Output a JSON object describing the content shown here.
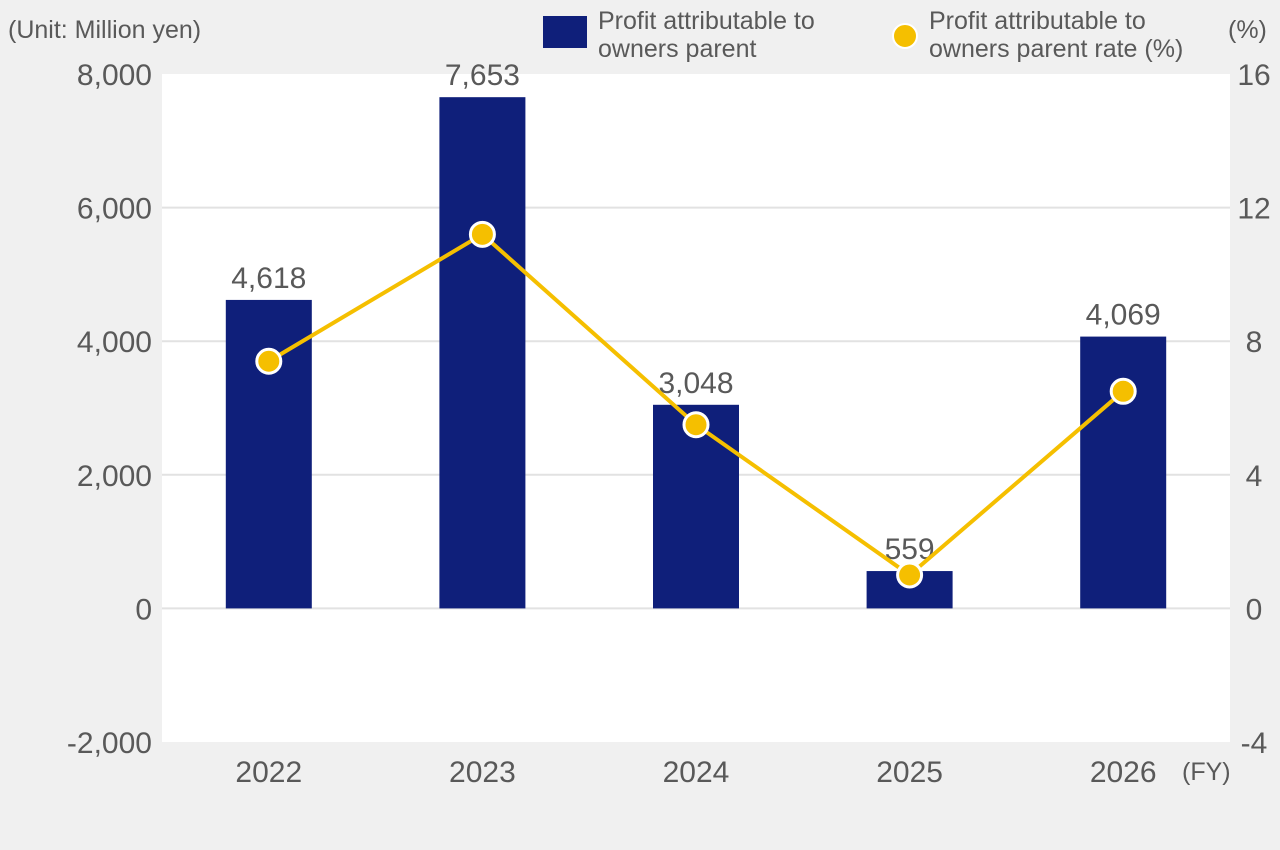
{
  "colors": {
    "bar": "#0f1f7a",
    "line": "#f5bf00",
    "grid": "#e2e2e2",
    "plot_bg": "#ffffff",
    "page_bg": "#f0f0f0"
  },
  "chart_data": {
    "type": "bar",
    "categories": [
      "2022",
      "2023",
      "2024",
      "2025",
      "2026"
    ],
    "series": [
      {
        "name": "Profit attributable to owners parent",
        "type": "bar",
        "axis": "left",
        "values": [
          4618,
          7653,
          3048,
          559,
          4069
        ],
        "labels": [
          "4,618",
          "7,653",
          "3,048",
          "559",
          "4,069"
        ]
      },
      {
        "name": "Profit attributable to owners parent rate (%)",
        "type": "line",
        "axis": "right",
        "values": [
          7.4,
          11.2,
          5.5,
          1.0,
          6.5
        ]
      }
    ],
    "y_left": {
      "unit_label": "(Unit: Million yen)",
      "ylim": [
        -2000,
        8000
      ],
      "ticks": [
        "8,000",
        "6,000",
        "4,000",
        "2,000",
        "0",
        "-2,000"
      ],
      "tick_values": [
        8000,
        6000,
        4000,
        2000,
        0,
        -2000
      ]
    },
    "y_right": {
      "unit_label": "(%)",
      "ylim": [
        -4,
        16
      ],
      "ticks": [
        "16",
        "12",
        "8",
        "4",
        "0",
        "-4"
      ],
      "tick_values": [
        16,
        12,
        8,
        4,
        0,
        -4
      ]
    },
    "x_unit_label": "(FY)",
    "legend": {
      "placement": "top-right",
      "bar_label_line1": "Profit attributable to",
      "bar_label_line2": "owners parent",
      "line_label_line1": "Profit attributable to",
      "line_label_line2": "owners parent rate (%)"
    },
    "grid": true
  }
}
